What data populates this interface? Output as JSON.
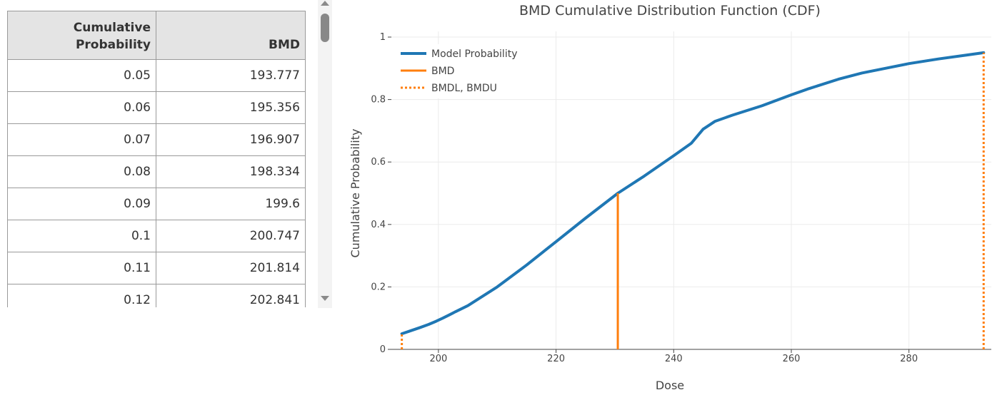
{
  "table": {
    "headers": [
      "Cumulative Probability",
      "BMD"
    ],
    "rows": [
      [
        "0.05",
        "193.777"
      ],
      [
        "0.06",
        "195.356"
      ],
      [
        "0.07",
        "196.907"
      ],
      [
        "0.08",
        "198.334"
      ],
      [
        "0.09",
        "199.6"
      ],
      [
        "0.1",
        "200.747"
      ],
      [
        "0.11",
        "201.814"
      ],
      [
        "0.12",
        "202.841"
      ]
    ]
  },
  "chart_data": {
    "type": "line",
    "title": "BMD Cumulative Distribution Function (CDF)",
    "xlabel": "Dose",
    "ylabel": "Cumulative Probability",
    "xlim": [
      192,
      294
    ],
    "ylim": [
      0,
      1
    ],
    "xticks": [
      200,
      220,
      240,
      260,
      280
    ],
    "yticks": [
      0,
      0.2,
      0.4,
      0.6,
      0.8,
      1
    ],
    "grid": true,
    "legend_position": "top-left",
    "series": [
      {
        "name": "Model Probability",
        "color": "#1f77b4",
        "style": "solid",
        "x": [
          193.777,
          195.356,
          196.907,
          198.334,
          199.6,
          200.747,
          201.814,
          202.841,
          205,
          210,
          215,
          220,
          225,
          230.5,
          235,
          240,
          243,
          245,
          247,
          250,
          255,
          260,
          263,
          268,
          272,
          276,
          280,
          285,
          290,
          292.7
        ],
        "y": [
          0.05,
          0.06,
          0.07,
          0.08,
          0.09,
          0.1,
          0.11,
          0.12,
          0.14,
          0.2,
          0.27,
          0.345,
          0.42,
          0.5,
          0.555,
          0.62,
          0.66,
          0.705,
          0.73,
          0.75,
          0.78,
          0.815,
          0.835,
          0.865,
          0.885,
          0.9,
          0.915,
          0.93,
          0.943,
          0.95
        ]
      }
    ],
    "bmd": {
      "name": "BMD",
      "color": "#ff7f0e",
      "style": "solid",
      "x": 230.5,
      "y": 0.5
    },
    "bmdl_bmdu": {
      "name": "BMDL, BMDU",
      "color": "#ff7f0e",
      "style": "dotted",
      "points": [
        {
          "x": 193.777,
          "y": 0.05
        },
        {
          "x": 292.7,
          "y": 0.95
        }
      ]
    }
  }
}
